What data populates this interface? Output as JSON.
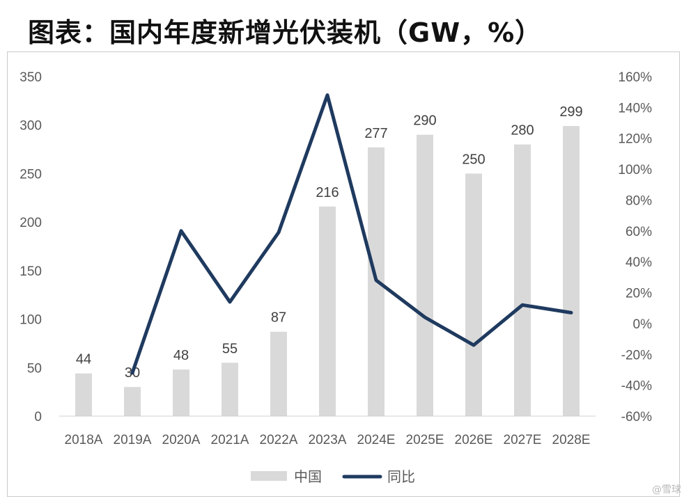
{
  "title": "图表：国内年度新增光伏装机（GW，%）",
  "chart_data": {
    "type": "bar",
    "categories": [
      "2018A",
      "2019A",
      "2020A",
      "2021A",
      "2022A",
      "2023A",
      "2024E",
      "2025E",
      "2026E",
      "2027E",
      "2028E"
    ],
    "series": [
      {
        "name": "中国",
        "type": "bar",
        "axis": "left",
        "color": "#d9d9d9",
        "values": [
          44,
          30,
          48,
          55,
          87,
          216,
          277,
          290,
          250,
          280,
          299
        ],
        "data_labels": [
          "44",
          "30",
          "48",
          "55",
          "87",
          "216",
          "277",
          "290",
          "250",
          "280",
          "299"
        ]
      },
      {
        "name": "同比",
        "type": "line",
        "axis": "right",
        "color": "#1f3a5f",
        "values": [
          null,
          -32,
          60,
          14,
          59,
          148,
          28,
          4,
          -14,
          12,
          7
        ]
      }
    ],
    "y_left": {
      "min": 0,
      "max": 350,
      "ticks": [
        "0",
        "50",
        "100",
        "150",
        "200",
        "250",
        "300",
        "350"
      ]
    },
    "y_right": {
      "min": -60,
      "max": 160,
      "ticks": [
        "-60%",
        "-40%",
        "-20%",
        "0%",
        "20%",
        "40%",
        "60%",
        "80%",
        "100%",
        "120%",
        "140%",
        "160%"
      ]
    },
    "grid": false,
    "legend_position": "bottom"
  },
  "watermark": "@雪球"
}
